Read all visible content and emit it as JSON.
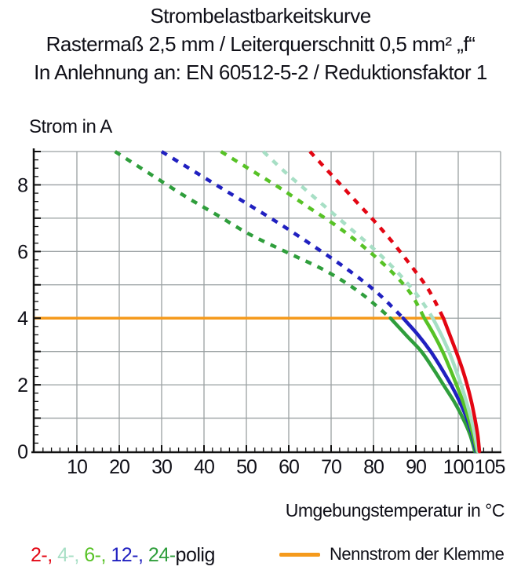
{
  "title": {
    "line1": "Strombelastbarkeitskurve",
    "line2": "Rastermaß 2,5 mm / Leiterquerschnitt 0,5 mm² „f“",
    "line3": "In Anlehnung an: EN 60512-5-2 / Reduktionsfaktor 1"
  },
  "y_axis_title": "Strom in A",
  "x_axis_title": "Umgebungstemperatur in °C",
  "legend": {
    "poles_items": [
      {
        "text": "2-, ",
        "color": "#e30613"
      },
      {
        "text": "4-, ",
        "color": "#a7dfc5"
      },
      {
        "text": "6-, ",
        "color": "#57c226"
      },
      {
        "text": "12-, ",
        "color": "#2020c0"
      },
      {
        "text": "24-",
        "color": "#2f9e3c"
      },
      {
        "text": "polig",
        "color": "#101018"
      }
    ],
    "nennstrom_label": "Nennstrom der Klemme",
    "nennstrom_color": "#f59a1c"
  },
  "colors": {
    "grid": "#9aa0a2",
    "axis": "#111111",
    "text": "#101018",
    "rated_line": "#f59a1c"
  },
  "chart_data": {
    "type": "line",
    "title": "Strombelastbarkeitskurve",
    "xlabel": "Umgebungstemperatur in °C",
    "ylabel": "Strom in A",
    "xlim": [
      0,
      110
    ],
    "ylim": [
      0,
      9
    ],
    "x_tick_labels": [
      10,
      20,
      30,
      40,
      50,
      60,
      70,
      80,
      90,
      100,
      105
    ],
    "y_tick_labels": [
      0,
      2,
      4,
      6,
      8
    ],
    "x_grid_step": 10,
    "y_grid_step": 1,
    "x_minor_tick_step": 2,
    "y_minor_tick_step": 0.25,
    "grid": true,
    "rated_current": {
      "value": 4,
      "x_start": 0,
      "x_end": 96.5,
      "label": "Nennstrom der Klemme",
      "color": "#f59a1c"
    },
    "dash_above_current": 4,
    "series": [
      {
        "name": "24-polig",
        "color": "#2f9e3c",
        "points": [
          [
            19,
            9
          ],
          [
            27,
            8.35
          ],
          [
            35,
            7.7
          ],
          [
            43,
            7.1
          ],
          [
            51,
            6.5
          ],
          [
            60,
            5.95
          ],
          [
            69,
            5.4
          ],
          [
            77,
            4.75
          ],
          [
            84,
            4
          ],
          [
            88,
            3.45
          ],
          [
            91.3,
            3
          ],
          [
            94,
            2.5
          ],
          [
            96.5,
            2
          ],
          [
            99,
            1.5
          ],
          [
            101.1,
            1
          ],
          [
            102.8,
            0.5
          ],
          [
            103.9,
            0
          ]
        ]
      },
      {
        "name": "12-polig",
        "color": "#2020c0",
        "points": [
          [
            30,
            9
          ],
          [
            39,
            8.3
          ],
          [
            48,
            7.6
          ],
          [
            57,
            6.9
          ],
          [
            66,
            6.15
          ],
          [
            74,
            5.45
          ],
          [
            81,
            4.75
          ],
          [
            87,
            4
          ],
          [
            90.5,
            3.5
          ],
          [
            93.5,
            3
          ],
          [
            96,
            2.5
          ],
          [
            98.3,
            2
          ],
          [
            100.3,
            1.5
          ],
          [
            102,
            1
          ],
          [
            103.3,
            0.5
          ],
          [
            104.2,
            0
          ]
        ]
      },
      {
        "name": "6-polig",
        "color": "#57c226",
        "points": [
          [
            44,
            9
          ],
          [
            51,
            8.45
          ],
          [
            58,
            7.9
          ],
          [
            65,
            7.3
          ],
          [
            72,
            6.7
          ],
          [
            79,
            6
          ],
          [
            85,
            5.3
          ],
          [
            89,
            4.7
          ],
          [
            92,
            4
          ],
          [
            94.3,
            3.5
          ],
          [
            96.3,
            3
          ],
          [
            98,
            2.5
          ],
          [
            99.6,
            2
          ],
          [
            101.1,
            1.5
          ],
          [
            102.4,
            1
          ],
          [
            103.5,
            0.5
          ],
          [
            104.4,
            0
          ]
        ]
      },
      {
        "name": "4-polig",
        "color": "#a7dfc5",
        "points": [
          [
            54,
            9
          ],
          [
            59,
            8.4
          ],
          [
            64,
            7.85
          ],
          [
            69,
            7.3
          ],
          [
            74,
            6.75
          ],
          [
            79,
            6.2
          ],
          [
            84,
            5.6
          ],
          [
            89,
            4.9
          ],
          [
            91.7,
            4.45
          ],
          [
            94,
            4
          ],
          [
            96,
            3.5
          ],
          [
            97.8,
            3
          ],
          [
            99.3,
            2.5
          ],
          [
            100.7,
            2
          ],
          [
            101.9,
            1.5
          ],
          [
            103,
            1
          ],
          [
            103.9,
            0.5
          ],
          [
            104.65,
            0
          ]
        ]
      },
      {
        "name": "2-polig",
        "color": "#e30613",
        "points": [
          [
            65,
            9
          ],
          [
            69,
            8.45
          ],
          [
            73,
            7.9
          ],
          [
            77,
            7.35
          ],
          [
            81,
            6.8
          ],
          [
            85,
            6.2
          ],
          [
            89,
            5.55
          ],
          [
            93,
            4.85
          ],
          [
            96.5,
            4
          ],
          [
            98,
            3.5
          ],
          [
            99.5,
            3
          ],
          [
            100.9,
            2.5
          ],
          [
            102.1,
            2
          ],
          [
            103.1,
            1.5
          ],
          [
            103.9,
            1
          ],
          [
            104.6,
            0.5
          ],
          [
            105,
            0
          ]
        ]
      }
    ]
  }
}
